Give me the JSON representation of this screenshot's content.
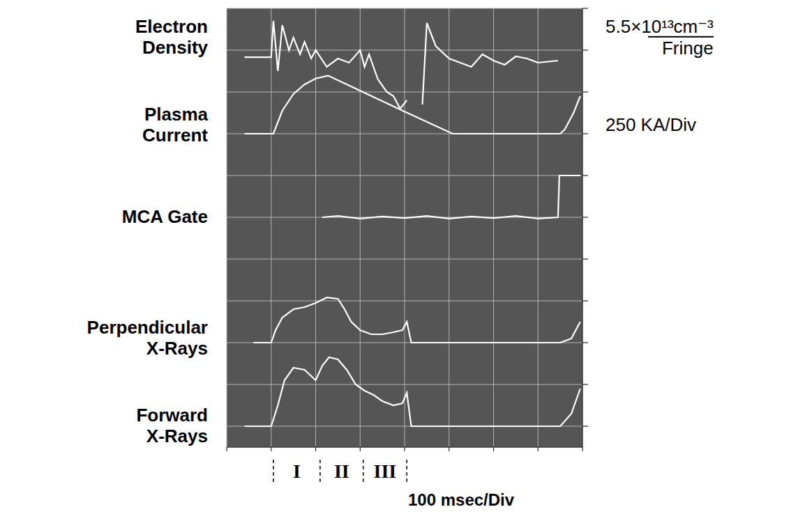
{
  "chart_data": {
    "type": "line",
    "x_label": "100 msec/Div",
    "xlim": [
      0,
      800
    ],
    "xticks": [
      0,
      100,
      200,
      300,
      400,
      500,
      600,
      700,
      800
    ],
    "ylim": [
      -0.5,
      10
    ],
    "yticks": [
      0,
      1,
      2,
      3,
      4,
      5,
      6,
      7,
      8,
      9,
      10
    ],
    "grid": true,
    "tick_labels": false,
    "series": [
      {
        "name": "Electron Density",
        "color": "#ffffff",
        "x": [
          40,
          75,
          100,
          105,
          115,
          125,
          140,
          150,
          165,
          175,
          190,
          200,
          225,
          250,
          275,
          300,
          310,
          320,
          340,
          360,
          375,
          390,
          405,
          420,
          440,
          450,
          470,
          500,
          525,
          550,
          575,
          600,
          625,
          650,
          675,
          700,
          745
        ],
        "values": [
          8.83,
          8.83,
          8.83,
          9.7,
          8.5,
          9.6,
          9.0,
          9.3,
          8.9,
          9.2,
          8.8,
          9.0,
          8.6,
          8.8,
          8.7,
          9.0,
          8.6,
          8.9,
          8.3,
          8.0,
          7.9,
          7.6,
          7.8,
          null,
          7.7,
          9.65,
          9.1,
          8.8,
          8.7,
          8.6,
          8.9,
          8.75,
          8.65,
          8.85,
          8.8,
          8.7,
          8.75
        ]
      },
      {
        "name": "Plasma Current",
        "color": "#ffffff",
        "x": [
          40,
          100,
          105,
          125,
          150,
          175,
          200,
          228,
          300,
          400,
          508,
          600,
          700,
          750,
          760,
          780,
          795
        ],
        "values": [
          7.0,
          7.0,
          7.0,
          7.55,
          7.95,
          8.18,
          8.32,
          8.39,
          8.03,
          7.53,
          7.0,
          7.0,
          7.0,
          7.0,
          7.1,
          7.5,
          7.9
        ]
      },
      {
        "name": "MCA Gate",
        "color": "#ffffff",
        "x": [
          215,
          250,
          300,
          350,
          400,
          450,
          500,
          550,
          600,
          650,
          700,
          745,
          748,
          795
        ],
        "values": [
          5.0,
          5.03,
          4.97,
          5.02,
          4.98,
          5.03,
          4.97,
          5.02,
          4.98,
          5.03,
          4.97,
          5.0,
          6.0,
          6.0
        ]
      },
      {
        "name": "Perpendicular X-Rays",
        "color": "#ffffff",
        "x": [
          60,
          100,
          110,
          125,
          150,
          175,
          200,
          225,
          250,
          265,
          280,
          300,
          325,
          350,
          375,
          395,
          405,
          415,
          500,
          600,
          750,
          775,
          795
        ],
        "values": [
          2.0,
          2.0,
          2.3,
          2.6,
          2.8,
          2.85,
          2.95,
          3.08,
          3.05,
          2.8,
          2.5,
          2.3,
          2.2,
          2.2,
          2.25,
          2.3,
          2.5,
          2.0,
          2.0,
          2.0,
          2.0,
          2.1,
          2.5
        ]
      },
      {
        "name": "Forward X-Rays",
        "color": "#ffffff",
        "x": [
          40,
          100,
          115,
          130,
          150,
          175,
          200,
          215,
          230,
          250,
          270,
          290,
          310,
          330,
          350,
          375,
          395,
          405,
          415,
          500,
          600,
          750,
          775,
          795
        ],
        "values": [
          0,
          0,
          0.5,
          1.1,
          1.4,
          1.35,
          1.1,
          1.45,
          1.65,
          1.6,
          1.35,
          1.0,
          0.85,
          0.75,
          0.6,
          0.5,
          0.55,
          0.8,
          0,
          0,
          0,
          0,
          0.3,
          0.9
        ]
      }
    ],
    "scale_labels": [
      {
        "series": "Electron Density",
        "text": "5.5×10¹³cm⁻³",
        "per": "Fringe"
      },
      {
        "series": "Plasma Current",
        "text": "250 KA/Div"
      }
    ],
    "regions": [
      {
        "label": "I",
        "start": 105,
        "end": 210
      },
      {
        "label": "II",
        "start": 210,
        "end": 307
      },
      {
        "label": "III",
        "start": 307,
        "end": 405
      }
    ]
  }
}
